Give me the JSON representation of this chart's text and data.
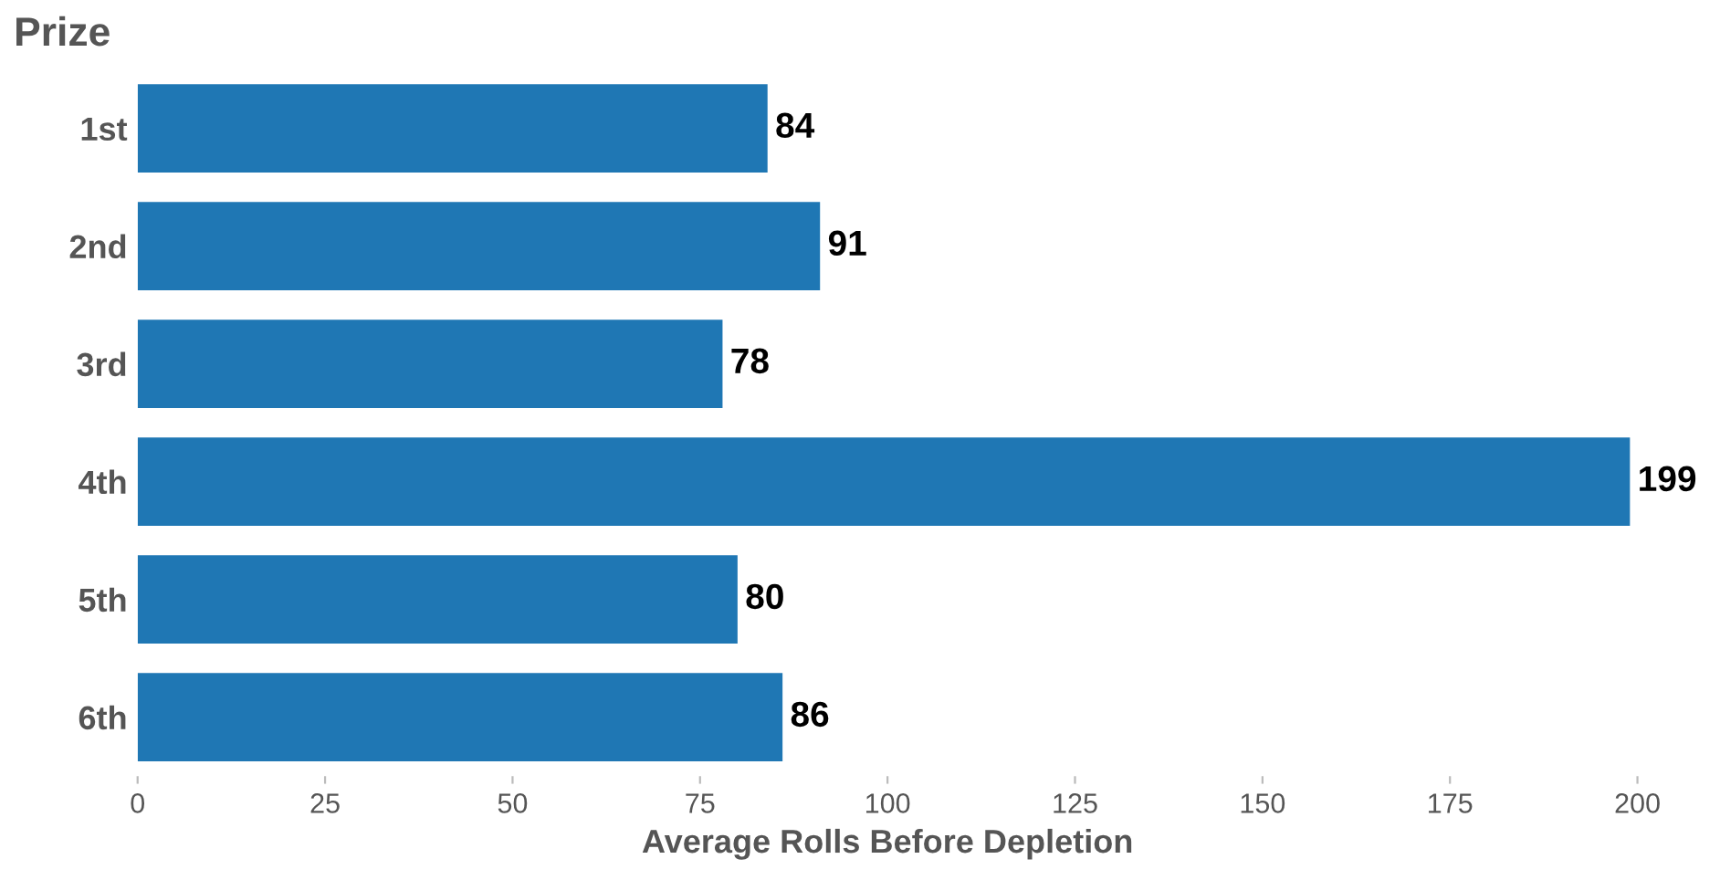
{
  "chart_data": {
    "type": "bar",
    "orientation": "horizontal",
    "ylabel": "Prize",
    "xlabel": "Average Rolls Before Depletion",
    "categories": [
      "1st",
      "2nd",
      "3rd",
      "4th",
      "5th",
      "6th"
    ],
    "values": [
      84,
      91,
      78,
      199,
      80,
      86
    ],
    "color": "#1f77b4",
    "xlim": [
      0,
      200
    ],
    "xticks": [
      0,
      25,
      50,
      75,
      100,
      125,
      150,
      175,
      200
    ],
    "data_labels": true,
    "grid": false,
    "legend": false
  }
}
